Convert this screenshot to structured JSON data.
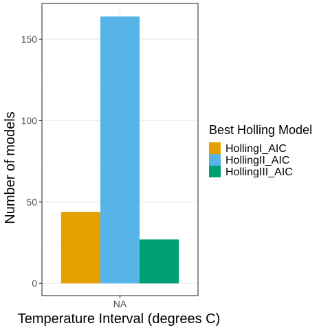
{
  "chart_data": {
    "type": "bar",
    "categories": [
      "NA"
    ],
    "series": [
      {
        "name": "HollingI_AIC",
        "values": [
          44
        ],
        "color": "#E69F00"
      },
      {
        "name": "HollingII_AIC",
        "values": [
          164
        ],
        "color": "#56B4E9"
      },
      {
        "name": "HollingIII_AIC",
        "values": [
          27
        ],
        "color": "#009E73"
      }
    ],
    "xlabel": "Temperature Interval (degrees C)",
    "ylabel": "Number of models",
    "ylim": [
      -7.5,
      172
    ],
    "yticks": [
      0,
      50,
      100,
      150
    ],
    "grid": true,
    "legend_title": "Best Holling Model",
    "legend_position": "right"
  }
}
